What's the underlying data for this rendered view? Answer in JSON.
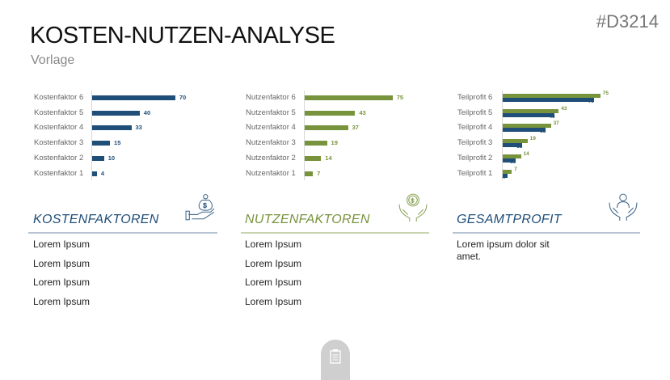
{
  "header": {
    "title": "KOSTEN-NUTZEN-ANALYSE",
    "subtitle": "Vorlage",
    "code": "#D3214"
  },
  "colors": {
    "blue": "#1f4e79",
    "green": "#77933c"
  },
  "chart_data": [
    {
      "type": "bar",
      "orientation": "horizontal",
      "categories": [
        "Kostenfaktor 6",
        "Kostenfaktor 5",
        "Kostenfaktor 4",
        "Kostenfaktor 3",
        "Kostenfaktor 2",
        "Kostenfaktor 1"
      ],
      "series": [
        {
          "values": [
            70,
            40,
            33,
            15,
            10,
            4
          ],
          "color": "#1f4e79"
        }
      ]
    },
    {
      "type": "bar",
      "orientation": "horizontal",
      "categories": [
        "Nutzenfaktor 6",
        "Nutzenfaktor 5",
        "Nutzenfaktor 4",
        "Nutzenfaktor 3",
        "Nutzenfaktor 2",
        "Nutzenfaktor 1"
      ],
      "series": [
        {
          "values": [
            75,
            43,
            37,
            19,
            14,
            7
          ],
          "color": "#77933c"
        }
      ]
    },
    {
      "type": "bar",
      "orientation": "horizontal",
      "categories": [
        "Teilprofit 6",
        "Teilprofit 5",
        "Teilprofit 4",
        "Teilprofit 3",
        "Teilprofit 2",
        "Teilprofit 1"
      ],
      "series": [
        {
          "values": [
            75,
            43,
            37,
            19,
            14,
            7
          ],
          "color": "#77933c"
        },
        {
          "values": [
            70,
            40,
            33,
            15,
            10,
            4
          ],
          "color": "#1f4e79"
        }
      ]
    }
  ],
  "sections": [
    {
      "title": "KOSTENFAKTOREN",
      "color": "#1f4e79",
      "icon": "money-bag-hand-icon",
      "items": [
        "Lorem Ipsum",
        "Lorem Ipsum",
        "Lorem Ipsum",
        "Lorem Ipsum"
      ]
    },
    {
      "title": "NUTZENFAKTOREN",
      "color": "#77933c",
      "icon": "coin-hands-icon",
      "items": [
        "Lorem Ipsum",
        "Lorem Ipsum",
        "Lorem Ipsum",
        "Lorem Ipsum"
      ]
    },
    {
      "title": "GESAMTPROFIT",
      "color": "#1f4e79",
      "icon": "person-hands-icon",
      "items": [
        "Lorem ipsum dolor sit amet."
      ]
    }
  ],
  "footer": {
    "icon": "clipboard-icon"
  }
}
